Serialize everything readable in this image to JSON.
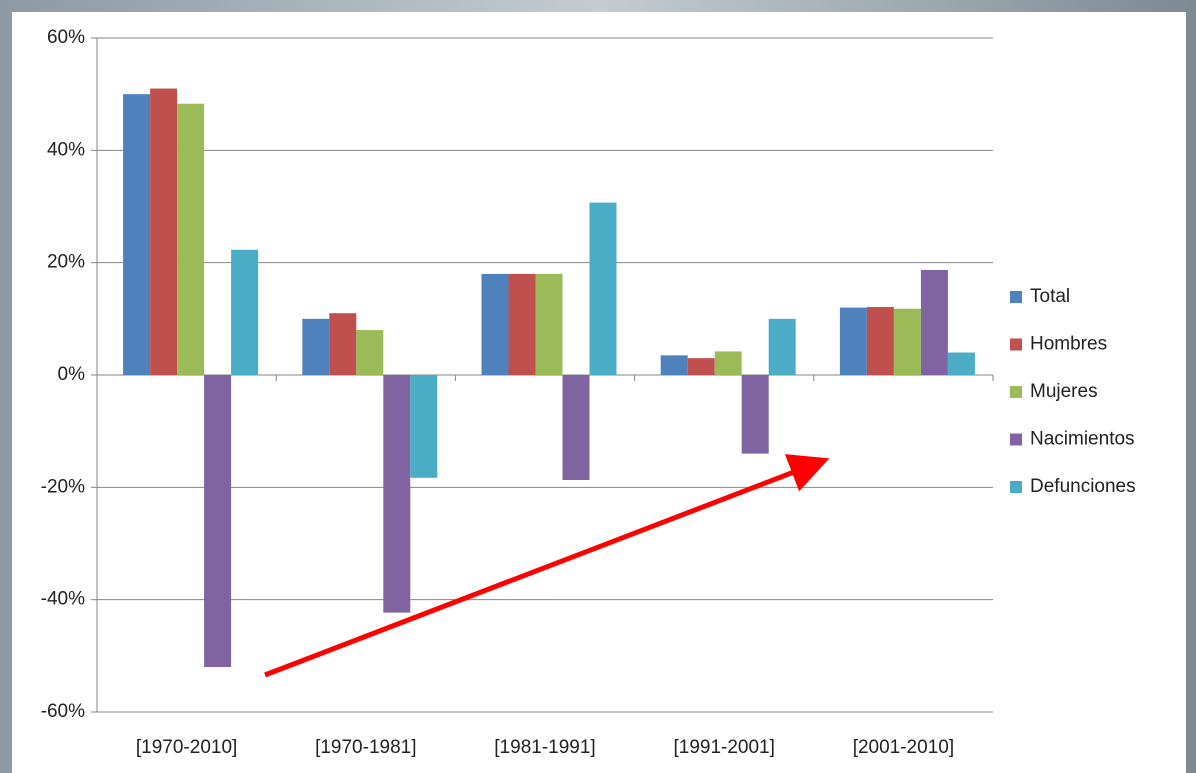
{
  "chart_data": {
    "type": "bar",
    "categories": [
      "[1970-2010]",
      "[1970-1981]",
      "[1981-1991]",
      "[1991-2001]",
      "[2001-2010]"
    ],
    "series": [
      {
        "name": "Total",
        "color": "#4f81bd",
        "values": [
          50,
          10,
          18,
          3.5,
          12
        ]
      },
      {
        "name": "Hombres",
        "color": "#c0504d",
        "values": [
          51,
          11,
          18,
          3,
          12.1
        ]
      },
      {
        "name": "Mujeres",
        "color": "#9bbb59",
        "values": [
          48.3,
          8,
          18,
          4.2,
          11.8
        ]
      },
      {
        "name": "Nacimientos",
        "color": "#8064a2",
        "values": [
          -52,
          -42.3,
          -18.7,
          -14,
          18.7
        ]
      },
      {
        "name": "Defunciones",
        "color": "#4bacc6",
        "values": [
          22.3,
          -18.3,
          30.7,
          10,
          4
        ]
      }
    ],
    "ylim": [
      -60,
      60
    ],
    "yticks": [
      {
        "value": -60,
        "label": "-60%"
      },
      {
        "value": -40,
        "label": "-40%"
      },
      {
        "value": -20,
        "label": "-20%"
      },
      {
        "value": 0,
        "label": "0%"
      },
      {
        "value": 20,
        "label": "20%"
      },
      {
        "value": 40,
        "label": "40%"
      },
      {
        "value": 60,
        "label": "60%"
      }
    ],
    "grid": true,
    "legend": "right"
  }
}
